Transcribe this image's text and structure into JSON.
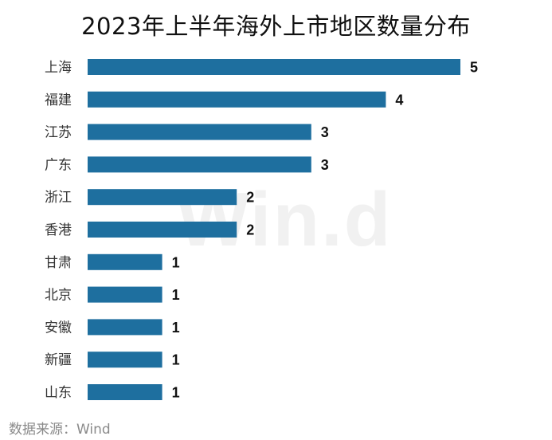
{
  "watermark": "Win.d",
  "source": "数据来源：Wind",
  "chart_data": {
    "type": "bar",
    "orientation": "horizontal",
    "title": "2023年上半年海外上市地区数量分布",
    "categories": [
      "上海",
      "福建",
      "江苏",
      "广东",
      "浙江",
      "香港",
      "甘肃",
      "北京",
      "安徽",
      "新疆",
      "山东"
    ],
    "values": [
      5,
      4,
      3,
      3,
      2,
      2,
      1,
      1,
      1,
      1,
      1
    ],
    "xlim": [
      0,
      5
    ],
    "bar_color": "#1e6f9f",
    "grid": false,
    "data_labels": true
  }
}
